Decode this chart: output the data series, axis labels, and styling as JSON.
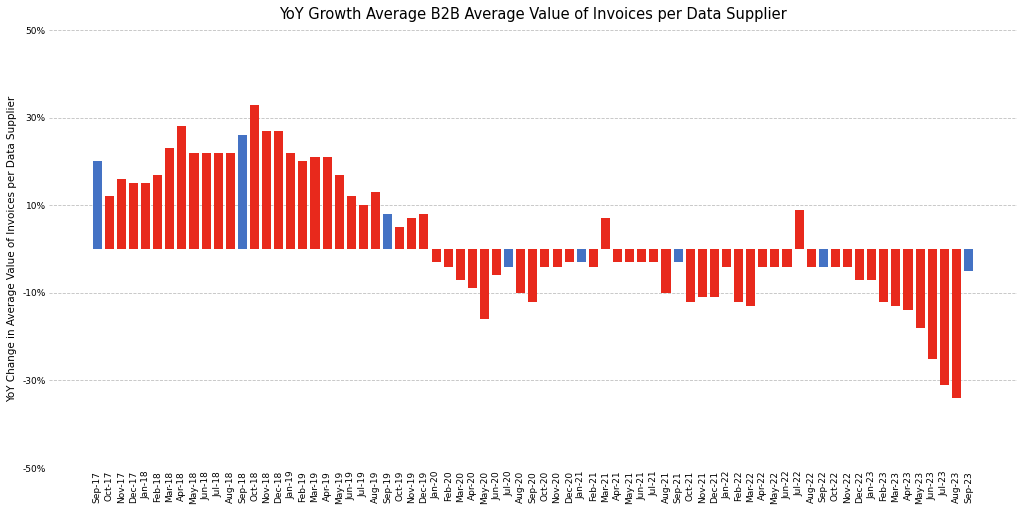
{
  "title": "YoY Growth Average B2B Average Value of Invoices per Data Supplier",
  "ylabel": "YoY Change in Average Value of Invoices per Data Supplier",
  "categories": [
    "Sep-17",
    "Oct-17",
    "Nov-17",
    "Dec-17",
    "Jan-18",
    "Feb-18",
    "Mar-18",
    "Apr-18",
    "May-18",
    "Jun-18",
    "Jul-18",
    "Aug-18",
    "Sep-18",
    "Oct-18",
    "Nov-18",
    "Dec-18",
    "Jan-19",
    "Feb-19",
    "Mar-19",
    "Apr-19",
    "May-19",
    "Jun-19",
    "Jul-19",
    "Aug-19",
    "Sep-19",
    "Oct-19",
    "Nov-19",
    "Dec-19",
    "Jan-20",
    "Feb-20",
    "Mar-20",
    "Apr-20",
    "May-20",
    "Jun-20",
    "Jul-20",
    "Aug-20",
    "Sep-20",
    "Oct-20",
    "Nov-20",
    "Dec-20",
    "Jan-21",
    "Feb-21",
    "Mar-21",
    "Apr-21",
    "May-21",
    "Jun-21",
    "Jul-21",
    "Aug-21",
    "Sep-21",
    "Oct-21",
    "Nov-21",
    "Dec-21",
    "Jan-22",
    "Feb-22",
    "Mar-22",
    "Apr-22",
    "May-22",
    "Jun-22",
    "Jul-22",
    "Aug-22",
    "Sep-22",
    "Oct-22",
    "Nov-22",
    "Dec-22",
    "Jan-23",
    "Feb-23",
    "Mar-23",
    "Apr-23",
    "May-23",
    "Jun-23",
    "Jul-23",
    "Aug-23",
    "Sep-23"
  ],
  "values": [
    20,
    12,
    16,
    15,
    15,
    17,
    23,
    28,
    22,
    22,
    22,
    22,
    26,
    33,
    27,
    27,
    22,
    20,
    21,
    21,
    17,
    12,
    10,
    13,
    8,
    5,
    7,
    8,
    -3,
    -4,
    -7,
    -9,
    -16,
    -6,
    -4,
    -10,
    -12,
    -4,
    -4,
    -3,
    -3,
    -4,
    7,
    -3,
    -3,
    -3,
    -3,
    -10,
    -3,
    -12,
    -11,
    -11,
    -4,
    -12,
    -13,
    -4,
    -4,
    -4,
    9,
    -4,
    -4,
    -4,
    -4,
    -7,
    -7,
    -12,
    -13,
    -14,
    -18,
    -25,
    -31,
    -34,
    -5
  ],
  "colors": [
    "blue",
    "red",
    "red",
    "red",
    "red",
    "red",
    "red",
    "red",
    "red",
    "red",
    "red",
    "red",
    "blue",
    "red",
    "red",
    "red",
    "red",
    "red",
    "red",
    "red",
    "red",
    "red",
    "red",
    "red",
    "blue",
    "red",
    "red",
    "red",
    "red",
    "red",
    "red",
    "red",
    "red",
    "red",
    "blue",
    "red",
    "red",
    "red",
    "red",
    "red",
    "blue",
    "red",
    "red",
    "red",
    "red",
    "red",
    "red",
    "red",
    "blue",
    "red",
    "red",
    "red",
    "red",
    "red",
    "red",
    "red",
    "red",
    "red",
    "red",
    "red",
    "blue",
    "red",
    "red",
    "red",
    "red",
    "red",
    "red",
    "red",
    "red",
    "red",
    "red",
    "red",
    "blue"
  ],
  "bar_color_red": "#E8291C",
  "bar_color_blue": "#4472C4",
  "ylim": [
    -50,
    50
  ],
  "yticks": [
    -50,
    -30,
    -10,
    10,
    30,
    50
  ],
  "ytick_labels": [
    "-50%",
    "-30%",
    "-10%",
    "10%",
    "30%",
    "50%"
  ],
  "grid_color": "#C0C0C0",
  "background_color": "#FFFFFF",
  "title_fontsize": 10.5,
  "ylabel_fontsize": 7.5,
  "tick_fontsize": 6.5
}
